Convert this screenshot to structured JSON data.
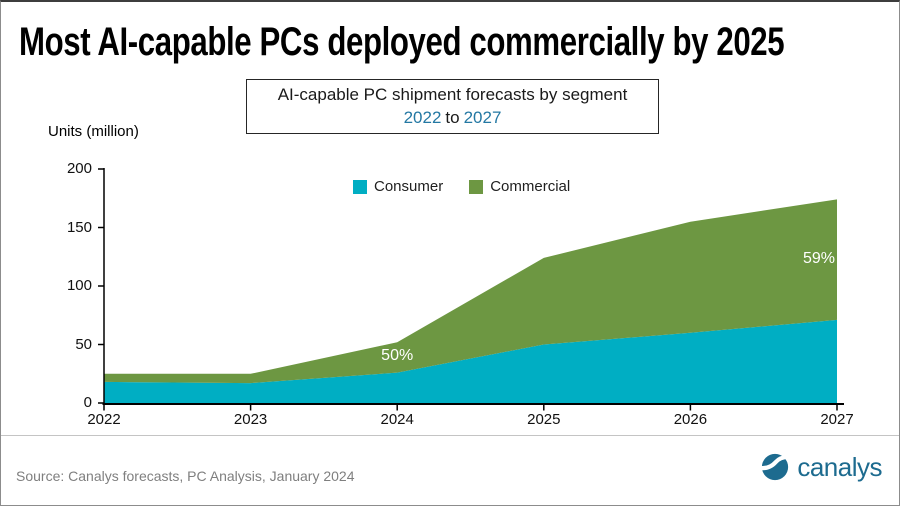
{
  "header": {
    "title": "Most AI-capable PCs deployed commercially by 2025"
  },
  "subtitle": {
    "line1": "AI-capable PC shipment forecasts by segment",
    "year_start": "2022",
    "connector": "to",
    "year_end": "2027",
    "accent_color": "#2478A3"
  },
  "chart_data": {
    "type": "area",
    "stacked": true,
    "title": "AI-capable PC shipment forecasts by segment 2022 to 2027",
    "ylabel": "Units (million)",
    "categories": [
      "2022",
      "2023",
      "2024",
      "2025",
      "2026",
      "2027"
    ],
    "series": [
      {
        "name": "Consumer",
        "color": "#00AEC3",
        "values": [
          18,
          17,
          26,
          50,
          60,
          71
        ]
      },
      {
        "name": "Commercial",
        "color": "#6D9742",
        "values": [
          7,
          8,
          26,
          74,
          95,
          103
        ]
      }
    ],
    "totals": [
      25,
      25,
      52,
      124,
      155,
      174
    ],
    "ylim": [
      0,
      200
    ],
    "yticks": [
      0,
      50,
      100,
      150,
      200
    ],
    "grid": false,
    "legend_position": "top-center-inside",
    "axis_color": "#000000",
    "annotations": [
      {
        "text": "50%",
        "category": "2024",
        "series": "Commercial"
      },
      {
        "text": "59%",
        "category": "2027",
        "series": "Commercial"
      }
    ]
  },
  "footer": {
    "source": "Source: Canalys forecasts, PC Analysis, January 2024",
    "logo_text": "canalys",
    "logo_color": "#1D6B8F"
  }
}
